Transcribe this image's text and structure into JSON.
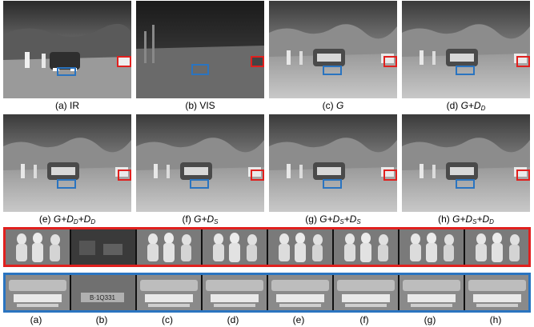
{
  "figure": {
    "captions_row1": [
      {
        "prefix": "(a) ",
        "text": "IR"
      },
      {
        "prefix": "(b) ",
        "text": "VIS"
      },
      {
        "prefix": "(c) ",
        "text": "G"
      },
      {
        "prefix": "(d) ",
        "text": "G+D",
        "sub": "D"
      }
    ],
    "captions_row2": [
      {
        "prefix": "(e) ",
        "text": "G+D",
        "sub": "D",
        "text2": "+D",
        "sub2": "D"
      },
      {
        "prefix": "(f) ",
        "text": "G+D",
        "sub": "S"
      },
      {
        "prefix": "(g) ",
        "text": "G+D",
        "sub": "S",
        "text2": "+D",
        "sub2": "S"
      },
      {
        "prefix": "(h) ",
        "text": "G+D",
        "sub": "S",
        "text2": "+D",
        "sub2": "D"
      }
    ],
    "strip_labels": [
      "(a)",
      "(b)",
      "(c)",
      "(d)",
      "(e)",
      "(f)",
      "(g)",
      "(h)"
    ],
    "plate_text": "B·1Q331",
    "colors": {
      "red_box": "#e0201e",
      "blue_box": "#2a74c0"
    }
  }
}
